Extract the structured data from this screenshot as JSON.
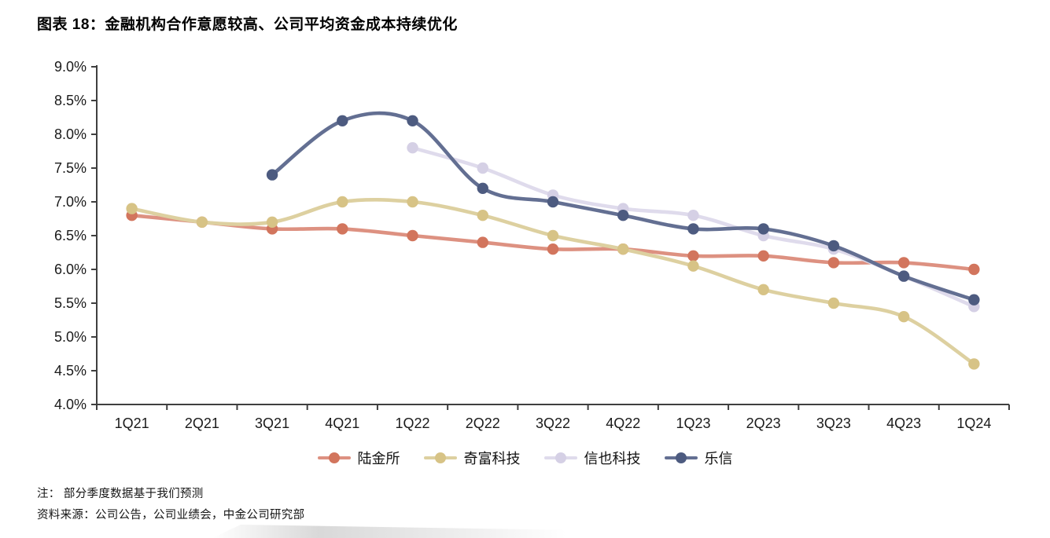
{
  "title": "图表 18：金融机构合作意愿较高、公司平均资金成本持续优化",
  "notes": {
    "note1": "注：  部分季度数据基于我们预测",
    "note2": "资料来源：公司公告，公司业绩会，中金公司研究部"
  },
  "chart_data": {
    "type": "line",
    "title": "图表 18：金融机构合作意愿较高、公司平均资金成本持续优化",
    "categories": [
      "1Q21",
      "2Q21",
      "3Q21",
      "4Q21",
      "1Q22",
      "2Q22",
      "3Q22",
      "4Q22",
      "1Q23",
      "2Q23",
      "3Q23",
      "4Q23",
      "1Q24"
    ],
    "series": [
      {
        "name": "陆金所",
        "color": "#D2755D",
        "line_color": "#DD9181",
        "values": [
          6.8,
          6.7,
          6.6,
          6.6,
          6.5,
          6.4,
          6.3,
          6.3,
          6.2,
          6.2,
          6.1,
          6.1,
          6.0
        ]
      },
      {
        "name": "奇富科技",
        "color": "#D7C386",
        "line_color": "#DDD0A0",
        "values": [
          6.9,
          6.7,
          6.7,
          7.0,
          7.0,
          6.8,
          6.5,
          6.3,
          6.05,
          5.7,
          5.5,
          5.3,
          4.6
        ]
      },
      {
        "name": "信也科技",
        "color": "#D5D0E5",
        "line_color": "#DFDBEC",
        "values": [
          null,
          null,
          null,
          null,
          7.8,
          7.5,
          7.1,
          6.9,
          6.8,
          6.5,
          6.3,
          5.9,
          5.45
        ]
      },
      {
        "name": "乐信",
        "color": "#4D5B80",
        "line_color": "#636F92",
        "values": [
          null,
          null,
          7.4,
          8.2,
          8.2,
          7.2,
          7.0,
          6.8,
          6.6,
          6.6,
          6.35,
          5.9,
          5.55
        ]
      }
    ],
    "xlabel": "",
    "ylabel": "",
    "ylim": [
      4.0,
      9.0
    ],
    "y_tick_step": 0.5,
    "y_ticks": [
      "9.0%",
      "8.5%",
      "8.0%",
      "7.5%",
      "7.0%",
      "6.5%",
      "6.0%",
      "5.5%",
      "5.0%",
      "4.5%",
      "4.0%"
    ],
    "grid": false,
    "smooth": true,
    "legend_position": "bottom",
    "axis_color": "#3f3f3f",
    "tick_label_color": "#1a1a1a"
  }
}
